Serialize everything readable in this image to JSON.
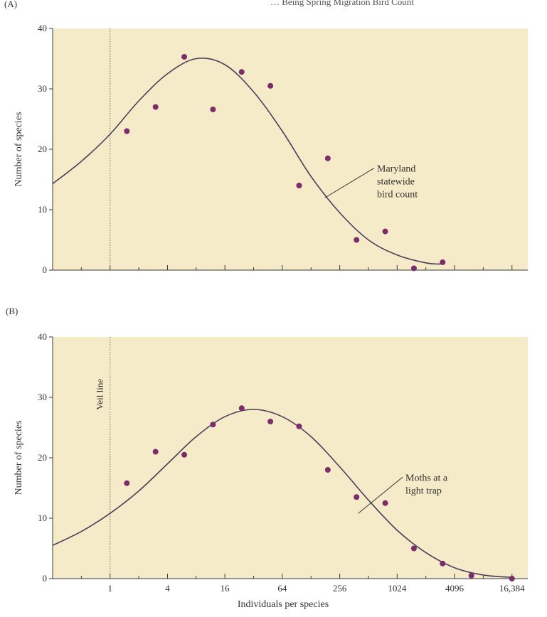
{
  "page_header_fragment": "… Being Spring Migration Bird Count",
  "colors": {
    "plot_bg": "#f6ebc8",
    "curve": "#4a3f5a",
    "point": "#7c2c68",
    "axis": "#3a3a3a",
    "veil": "#6a6a6a"
  },
  "chart_data": [
    {
      "panel": "(A)",
      "type": "scatter",
      "xlabel": "",
      "ylabel": "Number of species",
      "x_scale": "log2",
      "xlim": [
        0.25,
        24000
      ],
      "ylim": [
        0,
        40
      ],
      "yticks": [
        0,
        10,
        20,
        30,
        40
      ],
      "x_tick_labels": [],
      "show_veil": true,
      "veil_x": 1,
      "veil_label": "",
      "annotation": "Maryland statewide bird count",
      "annotation_lines": [
        "Maryland",
        "statewide",
        "bird count"
      ],
      "annotation_arrow_to": [
        180,
        12
      ],
      "grid": false,
      "points": [
        {
          "x": 1.5,
          "y": 23
        },
        {
          "x": 3,
          "y": 27
        },
        {
          "x": 6,
          "y": 35.3
        },
        {
          "x": 12,
          "y": 26.6
        },
        {
          "x": 24,
          "y": 32.8
        },
        {
          "x": 48,
          "y": 30.5
        },
        {
          "x": 96,
          "y": 14
        },
        {
          "x": 192,
          "y": 18.5
        },
        {
          "x": 384,
          "y": 5
        },
        {
          "x": 768,
          "y": 6.4
        },
        {
          "x": 1536,
          "y": 0.3
        },
        {
          "x": 3072,
          "y": 1.3
        }
      ],
      "curve": {
        "x": [
          0.25,
          0.5,
          1,
          2,
          4,
          8,
          16,
          32,
          64,
          128,
          256,
          512,
          1024,
          2048,
          3000
        ],
        "y": [
          14.3,
          18,
          22.5,
          28,
          32.5,
          35,
          34,
          29.5,
          23,
          15.5,
          9.5,
          5,
          2.5,
          1.2,
          1
        ]
      }
    },
    {
      "panel": "(B)",
      "type": "scatter",
      "xlabel": "Individuals per species",
      "ylabel": "Number of species",
      "x_scale": "log2",
      "xlim": [
        0.25,
        24000
      ],
      "ylim": [
        0,
        40
      ],
      "yticks": [
        0,
        10,
        20,
        30,
        40
      ],
      "x_tick_labels": [
        "1",
        "4",
        "16",
        "64",
        "256",
        "1024",
        "4096",
        "16,384"
      ],
      "x_tick_values": [
        1,
        4,
        16,
        64,
        256,
        1024,
        4096,
        16384
      ],
      "show_veil": true,
      "veil_x": 1,
      "veil_label": "Veil line",
      "annotation": "Moths at a light trap",
      "annotation_lines": [
        "Moths at a",
        "light trap"
      ],
      "annotation_arrow_to": [
        400,
        10.8
      ],
      "grid": false,
      "points": [
        {
          "x": 1.5,
          "y": 15.8
        },
        {
          "x": 3,
          "y": 21
        },
        {
          "x": 6,
          "y": 20.5
        },
        {
          "x": 12,
          "y": 25.5
        },
        {
          "x": 24,
          "y": 28.2
        },
        {
          "x": 48,
          "y": 26
        },
        {
          "x": 96,
          "y": 25.2
        },
        {
          "x": 192,
          "y": 18
        },
        {
          "x": 384,
          "y": 13.5
        },
        {
          "x": 768,
          "y": 12.5
        },
        {
          "x": 1536,
          "y": 5
        },
        {
          "x": 3072,
          "y": 2.5
        },
        {
          "x": 6144,
          "y": 0.5
        },
        {
          "x": 16384,
          "y": 0
        }
      ],
      "curve": {
        "x": [
          0.25,
          0.5,
          1,
          2,
          4,
          8,
          16,
          32,
          64,
          128,
          256,
          512,
          1024,
          2048,
          4096,
          8192,
          16384
        ],
        "y": [
          5.5,
          7.8,
          10.8,
          14.5,
          19,
          23.5,
          26.8,
          28,
          26.8,
          23.5,
          18.5,
          13,
          8,
          4.3,
          1.8,
          0.6,
          0.2
        ]
      }
    }
  ]
}
